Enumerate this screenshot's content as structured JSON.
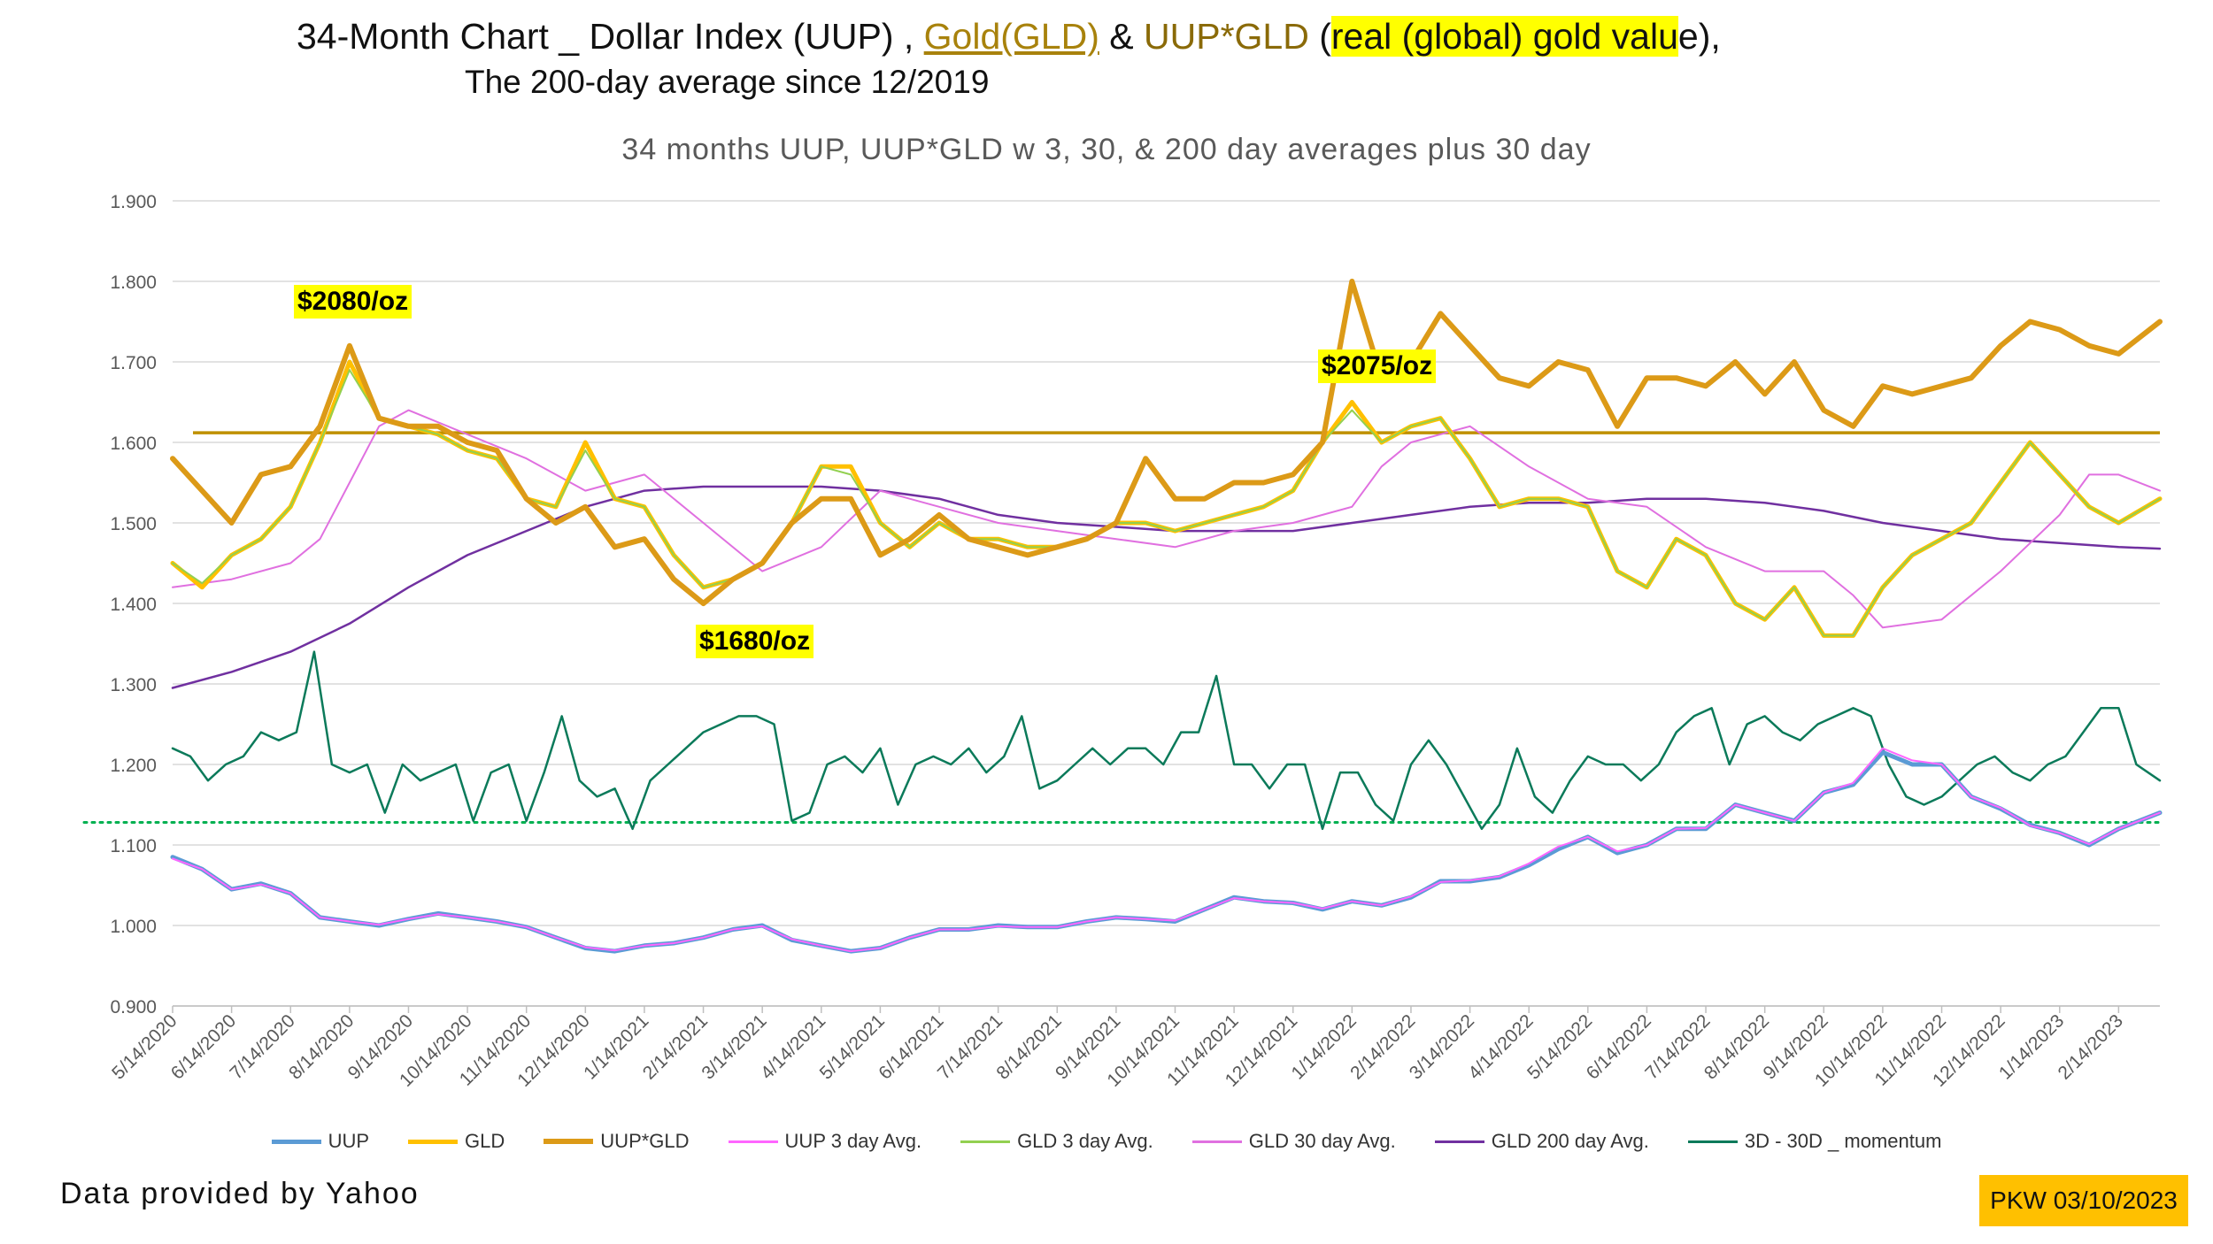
{
  "header": {
    "title_part1": "34-Month Chart _ Dollar Index (UUP) , ",
    "title_gold": "Gold(GLD)",
    "title_part2": "  & ",
    "title_uupgld": "UUP*GLD",
    "title_part3": "  (",
    "title_highlight": "real (global) gold valu",
    "title_part4": "e),",
    "subtitle_line": "The 200-day average since 12/2019"
  },
  "footer": {
    "source": "Data provided by Yahoo",
    "stamp": "PKW 03/10/2023"
  },
  "chart_data": {
    "type": "line",
    "title": "34 months UUP, UUP*GLD w 3, 30, & 200 day averages plus 30 day",
    "xlabel": "",
    "ylabel": "",
    "ylim": [
      0.9,
      1.9
    ],
    "yticks": [
      "0.900",
      "1.000",
      "1.100",
      "1.200",
      "1.300",
      "1.400",
      "1.500",
      "1.600",
      "1.700",
      "1.800",
      "1.900"
    ],
    "grid": true,
    "legend_position": "bottom",
    "categories": [
      "5/14/2020",
      "6/14/2020",
      "7/14/2020",
      "8/14/2020",
      "9/14/2020",
      "10/14/2020",
      "11/14/2020",
      "12/14/2020",
      "1/14/2021",
      "2/14/2021",
      "3/14/2021",
      "4/14/2021",
      "5/14/2021",
      "6/14/2021",
      "7/14/2021",
      "8/14/2021",
      "9/14/2021",
      "10/14/2021",
      "11/14/2021",
      "12/14/2021",
      "1/14/2022",
      "2/14/2022",
      "3/14/2022",
      "4/14/2022",
      "5/14/2022",
      "6/14/2022",
      "7/14/2022",
      "8/14/2022",
      "9/14/2022",
      "10/14/2022",
      "11/14/2022",
      "12/14/2022",
      "1/14/2023",
      "2/14/2023"
    ],
    "x_end": 33.7,
    "series": [
      {
        "name": "UUP",
        "color": "#5b9bd5",
        "width": 5,
        "x": [
          0,
          0.5,
          1,
          1.5,
          2,
          2.5,
          3,
          3.5,
          4,
          4.5,
          5,
          5.5,
          6,
          6.5,
          7,
          7.5,
          8,
          8.5,
          9,
          9.5,
          10,
          10.5,
          11,
          11.5,
          12,
          12.5,
          13,
          13.5,
          14,
          14.5,
          15,
          15.5,
          16,
          16.5,
          17,
          17.5,
          18,
          18.5,
          19,
          19.5,
          20,
          20.5,
          21,
          21.5,
          22,
          22.5,
          23,
          23.5,
          24,
          24.5,
          25,
          25.5,
          26,
          26.5,
          27,
          27.5,
          28,
          28.5,
          29,
          29.5,
          30,
          30.5,
          31,
          31.5,
          32,
          32.5,
          33,
          33.7
        ],
        "y": [
          1.085,
          1.07,
          1.045,
          1.052,
          1.04,
          1.01,
          1.005,
          1.0,
          1.008,
          1.015,
          1.01,
          1.005,
          0.998,
          0.985,
          0.972,
          0.968,
          0.975,
          0.978,
          0.985,
          0.995,
          1.0,
          0.982,
          0.975,
          0.968,
          0.972,
          0.985,
          0.995,
          0.995,
          1.0,
          0.998,
          0.998,
          1.005,
          1.01,
          1.008,
          1.005,
          1.02,
          1.035,
          1.03,
          1.028,
          1.02,
          1.03,
          1.025,
          1.035,
          1.055,
          1.055,
          1.06,
          1.075,
          1.095,
          1.11,
          1.09,
          1.1,
          1.12,
          1.12,
          1.15,
          1.14,
          1.13,
          1.165,
          1.175,
          1.215,
          1.2,
          1.2,
          1.16,
          1.145,
          1.125,
          1.115,
          1.1,
          1.12,
          1.14
        ]
      },
      {
        "name": "GLD",
        "color": "#ffc000",
        "width": 5,
        "x": [
          0,
          0.5,
          1,
          1.5,
          2,
          2.5,
          3,
          3.5,
          4,
          4.5,
          5,
          5.5,
          6,
          6.5,
          7,
          7.5,
          8,
          8.5,
          9,
          9.5,
          10,
          10.5,
          11,
          11.5,
          12,
          12.5,
          13,
          13.5,
          14,
          14.5,
          15,
          15.5,
          16,
          16.5,
          17,
          17.5,
          18,
          18.5,
          19,
          19.5,
          20,
          20.5,
          21,
          21.5,
          22,
          22.5,
          23,
          23.5,
          24,
          24.5,
          25,
          25.5,
          26,
          26.5,
          27,
          27.5,
          28,
          28.5,
          29,
          29.5,
          30,
          30.5,
          31,
          31.5,
          32,
          32.5,
          33,
          33.7
        ],
        "y": [
          1.45,
          1.42,
          1.46,
          1.48,
          1.52,
          1.6,
          1.7,
          1.63,
          1.62,
          1.61,
          1.59,
          1.58,
          1.53,
          1.52,
          1.6,
          1.53,
          1.52,
          1.46,
          1.42,
          1.43,
          1.45,
          1.5,
          1.57,
          1.57,
          1.5,
          1.47,
          1.5,
          1.48,
          1.48,
          1.47,
          1.47,
          1.48,
          1.5,
          1.5,
          1.49,
          1.5,
          1.51,
          1.52,
          1.54,
          1.6,
          1.65,
          1.6,
          1.62,
          1.63,
          1.58,
          1.52,
          1.53,
          1.53,
          1.52,
          1.44,
          1.42,
          1.48,
          1.46,
          1.4,
          1.38,
          1.42,
          1.36,
          1.36,
          1.42,
          1.46,
          1.48,
          1.5,
          1.55,
          1.6,
          1.56,
          1.52,
          1.5,
          1.53
        ]
      },
      {
        "name": "UUP*GLD",
        "color": "#dc9a17",
        "width": 6,
        "x": [
          0,
          0.5,
          1,
          1.5,
          2,
          2.5,
          3,
          3.5,
          4,
          4.5,
          5,
          5.5,
          6,
          6.5,
          7,
          7.5,
          8,
          8.5,
          9,
          9.5,
          10,
          10.5,
          11,
          11.5,
          12,
          12.5,
          13,
          13.5,
          14,
          14.5,
          15,
          15.5,
          16,
          16.5,
          17,
          17.5,
          18,
          18.5,
          19,
          19.5,
          20,
          20.5,
          21,
          21.5,
          22,
          22.5,
          23,
          23.5,
          24,
          24.5,
          25,
          25.5,
          26,
          26.5,
          27,
          27.5,
          28,
          28.5,
          29,
          29.5,
          30,
          30.5,
          31,
          31.5,
          32,
          32.5,
          33,
          33.7
        ],
        "y": [
          1.58,
          1.54,
          1.5,
          1.56,
          1.57,
          1.62,
          1.72,
          1.63,
          1.62,
          1.62,
          1.6,
          1.59,
          1.53,
          1.5,
          1.52,
          1.47,
          1.48,
          1.43,
          1.4,
          1.43,
          1.45,
          1.5,
          1.53,
          1.53,
          1.46,
          1.48,
          1.51,
          1.48,
          1.47,
          1.46,
          1.47,
          1.48,
          1.5,
          1.58,
          1.53,
          1.53,
          1.55,
          1.55,
          1.56,
          1.6,
          1.8,
          1.68,
          1.7,
          1.76,
          1.72,
          1.68,
          1.67,
          1.7,
          1.69,
          1.62,
          1.68,
          1.68,
          1.67,
          1.7,
          1.66,
          1.7,
          1.64,
          1.62,
          1.67,
          1.66,
          1.67,
          1.68,
          1.72,
          1.75,
          1.74,
          1.72,
          1.71,
          1.75
        ]
      },
      {
        "name": "UUP 3 day Avg.",
        "color": "#ff66ff",
        "width": 2,
        "x": [
          0,
          0.5,
          1,
          1.5,
          2,
          2.5,
          3,
          3.5,
          4,
          4.5,
          5,
          5.5,
          6,
          6.5,
          7,
          7.5,
          8,
          8.5,
          9,
          9.5,
          10,
          10.5,
          11,
          11.5,
          12,
          12.5,
          13,
          13.5,
          14,
          14.5,
          15,
          15.5,
          16,
          16.5,
          17,
          17.5,
          18,
          18.5,
          19,
          19.5,
          20,
          20.5,
          21,
          21.5,
          22,
          22.5,
          23,
          23.5,
          24,
          24.5,
          25,
          25.5,
          26,
          26.5,
          27,
          27.5,
          28,
          28.5,
          29,
          29.5,
          30,
          30.5,
          31,
          31.5,
          32,
          32.5,
          33,
          33.7
        ],
        "y": [
          1.083,
          1.07,
          1.045,
          1.051,
          1.04,
          1.01,
          1.005,
          1.001,
          1.008,
          1.014,
          1.01,
          1.005,
          0.998,
          0.985,
          0.973,
          0.969,
          0.975,
          0.978,
          0.985,
          0.995,
          0.999,
          0.983,
          0.975,
          0.968,
          0.972,
          0.985,
          0.995,
          0.995,
          0.999,
          0.998,
          0.998,
          1.005,
          1.01,
          1.008,
          1.006,
          1.02,
          1.034,
          1.03,
          1.028,
          1.021,
          1.03,
          1.025,
          1.036,
          1.054,
          1.056,
          1.061,
          1.077,
          1.098,
          1.11,
          1.092,
          1.1,
          1.12,
          1.121,
          1.15,
          1.14,
          1.13,
          1.165,
          1.177,
          1.22,
          1.205,
          1.2,
          1.16,
          1.146,
          1.124,
          1.115,
          1.101,
          1.12,
          1.14
        ]
      },
      {
        "name": "GLD 3 day Avg.",
        "color": "#92d050",
        "width": 2,
        "x": [
          0,
          0.5,
          1,
          1.5,
          2,
          2.5,
          3,
          3.5,
          4,
          4.5,
          5,
          5.5,
          6,
          6.5,
          7,
          7.5,
          8,
          8.5,
          9,
          9.5,
          10,
          10.5,
          11,
          11.5,
          12,
          12.5,
          13,
          13.5,
          14,
          14.5,
          15,
          15.5,
          16,
          16.5,
          17,
          17.5,
          18,
          18.5,
          19,
          19.5,
          20,
          20.5,
          21,
          21.5,
          22,
          22.5,
          23,
          23.5,
          24,
          24.5,
          25,
          25.5,
          26,
          26.5,
          27,
          27.5,
          28,
          28.5,
          29,
          29.5,
          30,
          30.5,
          31,
          31.5,
          32,
          32.5,
          33,
          33.7
        ],
        "y": [
          1.45,
          1.425,
          1.46,
          1.48,
          1.52,
          1.6,
          1.69,
          1.63,
          1.62,
          1.61,
          1.59,
          1.58,
          1.53,
          1.52,
          1.59,
          1.53,
          1.52,
          1.46,
          1.42,
          1.43,
          1.45,
          1.5,
          1.57,
          1.56,
          1.5,
          1.47,
          1.5,
          1.48,
          1.48,
          1.47,
          1.47,
          1.48,
          1.5,
          1.5,
          1.49,
          1.5,
          1.51,
          1.52,
          1.54,
          1.6,
          1.64,
          1.6,
          1.62,
          1.63,
          1.58,
          1.52,
          1.53,
          1.53,
          1.52,
          1.44,
          1.42,
          1.48,
          1.46,
          1.4,
          1.38,
          1.42,
          1.36,
          1.36,
          1.42,
          1.46,
          1.48,
          1.5,
          1.55,
          1.6,
          1.56,
          1.52,
          1.5,
          1.53
        ]
      },
      {
        "name": "GLD 30 day Avg.",
        "color": "#e070e0",
        "width": 2,
        "x": [
          0,
          1,
          2,
          2.5,
          3,
          3.5,
          4,
          5,
          6,
          7,
          8,
          9,
          10,
          11,
          12,
          13,
          14,
          15,
          16,
          17,
          18,
          19,
          20,
          20.5,
          21,
          22,
          23,
          24,
          25,
          26,
          27,
          28,
          28.5,
          29,
          30,
          31,
          32,
          32.5,
          33,
          33.7
        ],
        "y": [
          1.42,
          1.43,
          1.45,
          1.48,
          1.55,
          1.62,
          1.64,
          1.61,
          1.58,
          1.54,
          1.56,
          1.5,
          1.44,
          1.47,
          1.54,
          1.52,
          1.5,
          1.49,
          1.48,
          1.47,
          1.49,
          1.5,
          1.52,
          1.57,
          1.6,
          1.62,
          1.57,
          1.53,
          1.52,
          1.47,
          1.44,
          1.44,
          1.41,
          1.37,
          1.38,
          1.44,
          1.51,
          1.56,
          1.56,
          1.54
        ]
      },
      {
        "name": "GLD 200 day Avg.",
        "color": "#7030a0",
        "width": 2.5,
        "x": [
          0,
          1,
          2,
          3,
          4,
          5,
          6,
          7,
          8,
          9,
          10,
          11,
          12,
          13,
          14,
          15,
          16,
          17,
          18,
          19,
          20,
          21,
          22,
          23,
          24,
          25,
          26,
          27,
          28,
          29,
          30,
          31,
          32,
          33,
          33.7
        ],
        "y": [
          1.295,
          1.315,
          1.34,
          1.375,
          1.42,
          1.46,
          1.49,
          1.52,
          1.54,
          1.545,
          1.545,
          1.545,
          1.54,
          1.53,
          1.51,
          1.5,
          1.495,
          1.49,
          1.49,
          1.49,
          1.5,
          1.51,
          1.52,
          1.525,
          1.525,
          1.53,
          1.53,
          1.525,
          1.515,
          1.5,
          1.49,
          1.48,
          1.475,
          1.47,
          1.468
        ]
      },
      {
        "name": "3D - 30D _ momentum",
        "color": "#0b7a5a",
        "width": 2.5,
        "x": [
          0,
          0.3,
          0.6,
          0.9,
          1.2,
          1.5,
          1.8,
          2.1,
          2.4,
          2.7,
          3.0,
          3.3,
          3.6,
          3.9,
          4.2,
          4.5,
          4.8,
          5.1,
          5.4,
          5.7,
          6.0,
          6.3,
          6.6,
          6.9,
          7.2,
          7.5,
          7.8,
          8.1,
          8.4,
          8.7,
          9.0,
          9.3,
          9.6,
          9.9,
          10.2,
          10.5,
          10.8,
          11.1,
          11.4,
          11.7,
          12.0,
          12.3,
          12.6,
          12.9,
          13.2,
          13.5,
          13.8,
          14.1,
          14.4,
          14.7,
          15.0,
          15.3,
          15.6,
          15.9,
          16.2,
          16.5,
          16.8,
          17.1,
          17.4,
          17.7,
          18.0,
          18.3,
          18.6,
          18.9,
          19.2,
          19.5,
          19.8,
          20.1,
          20.4,
          20.7,
          21.0,
          21.3,
          21.6,
          21.9,
          22.2,
          22.5,
          22.8,
          23.1,
          23.4,
          23.7,
          24.0,
          24.3,
          24.6,
          24.9,
          25.2,
          25.5,
          25.8,
          26.1,
          26.4,
          26.7,
          27.0,
          27.3,
          27.6,
          27.9,
          28.2,
          28.5,
          28.8,
          29.1,
          29.4,
          29.7,
          30.0,
          30.3,
          30.6,
          30.9,
          31.2,
          31.5,
          31.8,
          32.1,
          32.4,
          32.7,
          33.0,
          33.3,
          33.7
        ],
        "y": [
          1.22,
          1.21,
          1.18,
          1.2,
          1.21,
          1.24,
          1.23,
          1.24,
          1.34,
          1.2,
          1.19,
          1.2,
          1.14,
          1.2,
          1.18,
          1.19,
          1.2,
          1.13,
          1.19,
          1.2,
          1.13,
          1.19,
          1.26,
          1.18,
          1.16,
          1.17,
          1.12,
          1.18,
          1.2,
          1.22,
          1.24,
          1.25,
          1.26,
          1.26,
          1.25,
          1.13,
          1.14,
          1.2,
          1.21,
          1.19,
          1.22,
          1.15,
          1.2,
          1.21,
          1.2,
          1.22,
          1.19,
          1.21,
          1.26,
          1.17,
          1.18,
          1.2,
          1.22,
          1.2,
          1.22,
          1.22,
          1.2,
          1.24,
          1.24,
          1.31,
          1.2,
          1.2,
          1.17,
          1.2,
          1.2,
          1.12,
          1.19,
          1.19,
          1.15,
          1.13,
          1.2,
          1.23,
          1.2,
          1.16,
          1.12,
          1.15,
          1.22,
          1.16,
          1.14,
          1.18,
          1.21,
          1.2,
          1.2,
          1.18,
          1.2,
          1.24,
          1.26,
          1.27,
          1.2,
          1.25,
          1.26,
          1.24,
          1.23,
          1.25,
          1.26,
          1.27,
          1.26,
          1.2,
          1.16,
          1.15,
          1.16,
          1.18,
          1.2,
          1.21,
          1.19,
          1.18,
          1.2,
          1.21,
          1.24,
          1.27,
          1.27,
          1.2,
          1.18
        ]
      }
    ],
    "reference_lines": [
      {
        "value": 1.612,
        "color": "#bf9000",
        "style": "solid"
      },
      {
        "value": 1.128,
        "color": "#00b050",
        "style": "dotted"
      }
    ],
    "annotations": [
      {
        "text": "$2080/oz"
      },
      {
        "text": "$2075/oz"
      },
      {
        "text": "$1680/oz"
      }
    ]
  }
}
